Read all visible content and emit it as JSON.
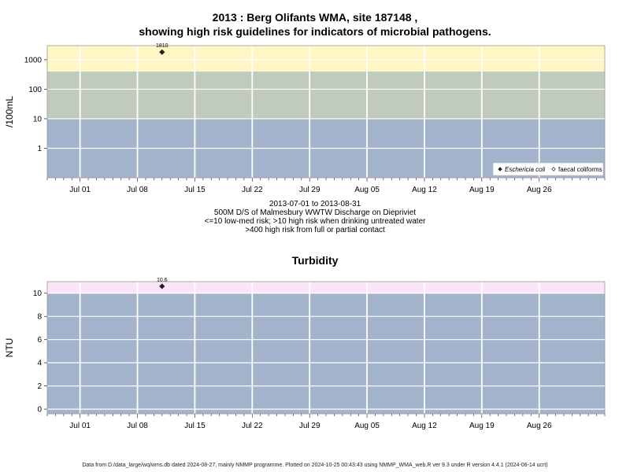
{
  "title_line1": "2013 : Berg Olifants WMA, site 187148 ,",
  "title_line2": "showing high risk guidelines for indicators of microbial pathogens.",
  "caption": [
    "2013-07-01 to 2013-08-31",
    "500M D/S of Malmesbury WWTW Discharge on Diepriviet",
    "<=10 low-med risk; >10 high risk when drinking untreated water",
    ">400 high risk from full or partial contact"
  ],
  "footer": "Data from D:/data_large/wq/wms.db dated 2024-08-27, mainly NMMP programme. Plotted on 2024-10-25 00:43:43 using NMMP_WMA_web.R ver 9.3 under R version 4.4.1 (2024-06-14 ucrt)",
  "colors": {
    "low_band": "#a2b3cb",
    "mid_band": "#c1cbbd",
    "high_band": "#fff6c6",
    "turbidity_high_band": "#fbe3f8",
    "gridline": "#ffffff",
    "point": "#222222"
  },
  "chart_data": [
    {
      "type": "scatter",
      "title": "",
      "ylabel": "/100mL",
      "yscale": "log",
      "ylim": [
        0.1,
        3000
      ],
      "xlim": [
        "2013-06-27",
        "2013-09-03"
      ],
      "x_ticks": [
        "Jul 01",
        "Jul 08",
        "Jul 15",
        "Jul 22",
        "Jul 29",
        "Aug 05",
        "Aug 12",
        "Aug 19",
        "Aug 26"
      ],
      "x_tick_dates": [
        "2013-07-01",
        "2013-07-08",
        "2013-07-15",
        "2013-07-22",
        "2013-07-29",
        "2013-08-05",
        "2013-08-12",
        "2013-08-19",
        "2013-08-26"
      ],
      "y_ticks": [
        "1",
        "10",
        "100",
        "1000"
      ],
      "y_tick_values": [
        1,
        10,
        100,
        1000
      ],
      "bands": [
        {
          "from": 0.1,
          "to": 10,
          "color": "#a2b3cb"
        },
        {
          "from": 10,
          "to": 400,
          "color": "#c1cbbd"
        },
        {
          "from": 400,
          "to": 3000,
          "color": "#fff6c6"
        }
      ],
      "grid": true,
      "legend_position": "bottom-right",
      "legend": [
        "Eschericia coli",
        "faecal coliforms"
      ],
      "series": [
        {
          "name": "Eschericia coli",
          "marker": "filled-diamond",
          "points": [
            {
              "x": "2013-07-11",
              "y": 1810,
              "label": "1810"
            }
          ]
        },
        {
          "name": "faecal coliforms",
          "marker": "open-diamond",
          "points": []
        }
      ]
    },
    {
      "type": "scatter",
      "title": "Turbidity",
      "ylabel": "NTU",
      "ylim": [
        -0.4,
        11.0
      ],
      "xlim": [
        "2013-06-27",
        "2013-09-03"
      ],
      "x_ticks": [
        "Jul 01",
        "Jul 08",
        "Jul 15",
        "Jul 22",
        "Jul 29",
        "Aug 05",
        "Aug 12",
        "Aug 19",
        "Aug 26"
      ],
      "x_tick_dates": [
        "2013-07-01",
        "2013-07-08",
        "2013-07-15",
        "2013-07-22",
        "2013-07-29",
        "2013-08-05",
        "2013-08-12",
        "2013-08-19",
        "2013-08-26"
      ],
      "y_ticks": [
        "0",
        "2",
        "4",
        "6",
        "8",
        "10"
      ],
      "y_tick_values": [
        0,
        2,
        4,
        6,
        8,
        10
      ],
      "bands": [
        {
          "from": -0.4,
          "to": 10,
          "color": "#a2b3cb"
        },
        {
          "from": 10,
          "to": 11.0,
          "color": "#fbe3f8"
        }
      ],
      "grid": true,
      "series": [
        {
          "name": "",
          "marker": "filled-diamond",
          "points": [
            {
              "x": "2013-07-11",
              "y": 10.6,
              "label": "10.6"
            }
          ]
        }
      ]
    }
  ]
}
